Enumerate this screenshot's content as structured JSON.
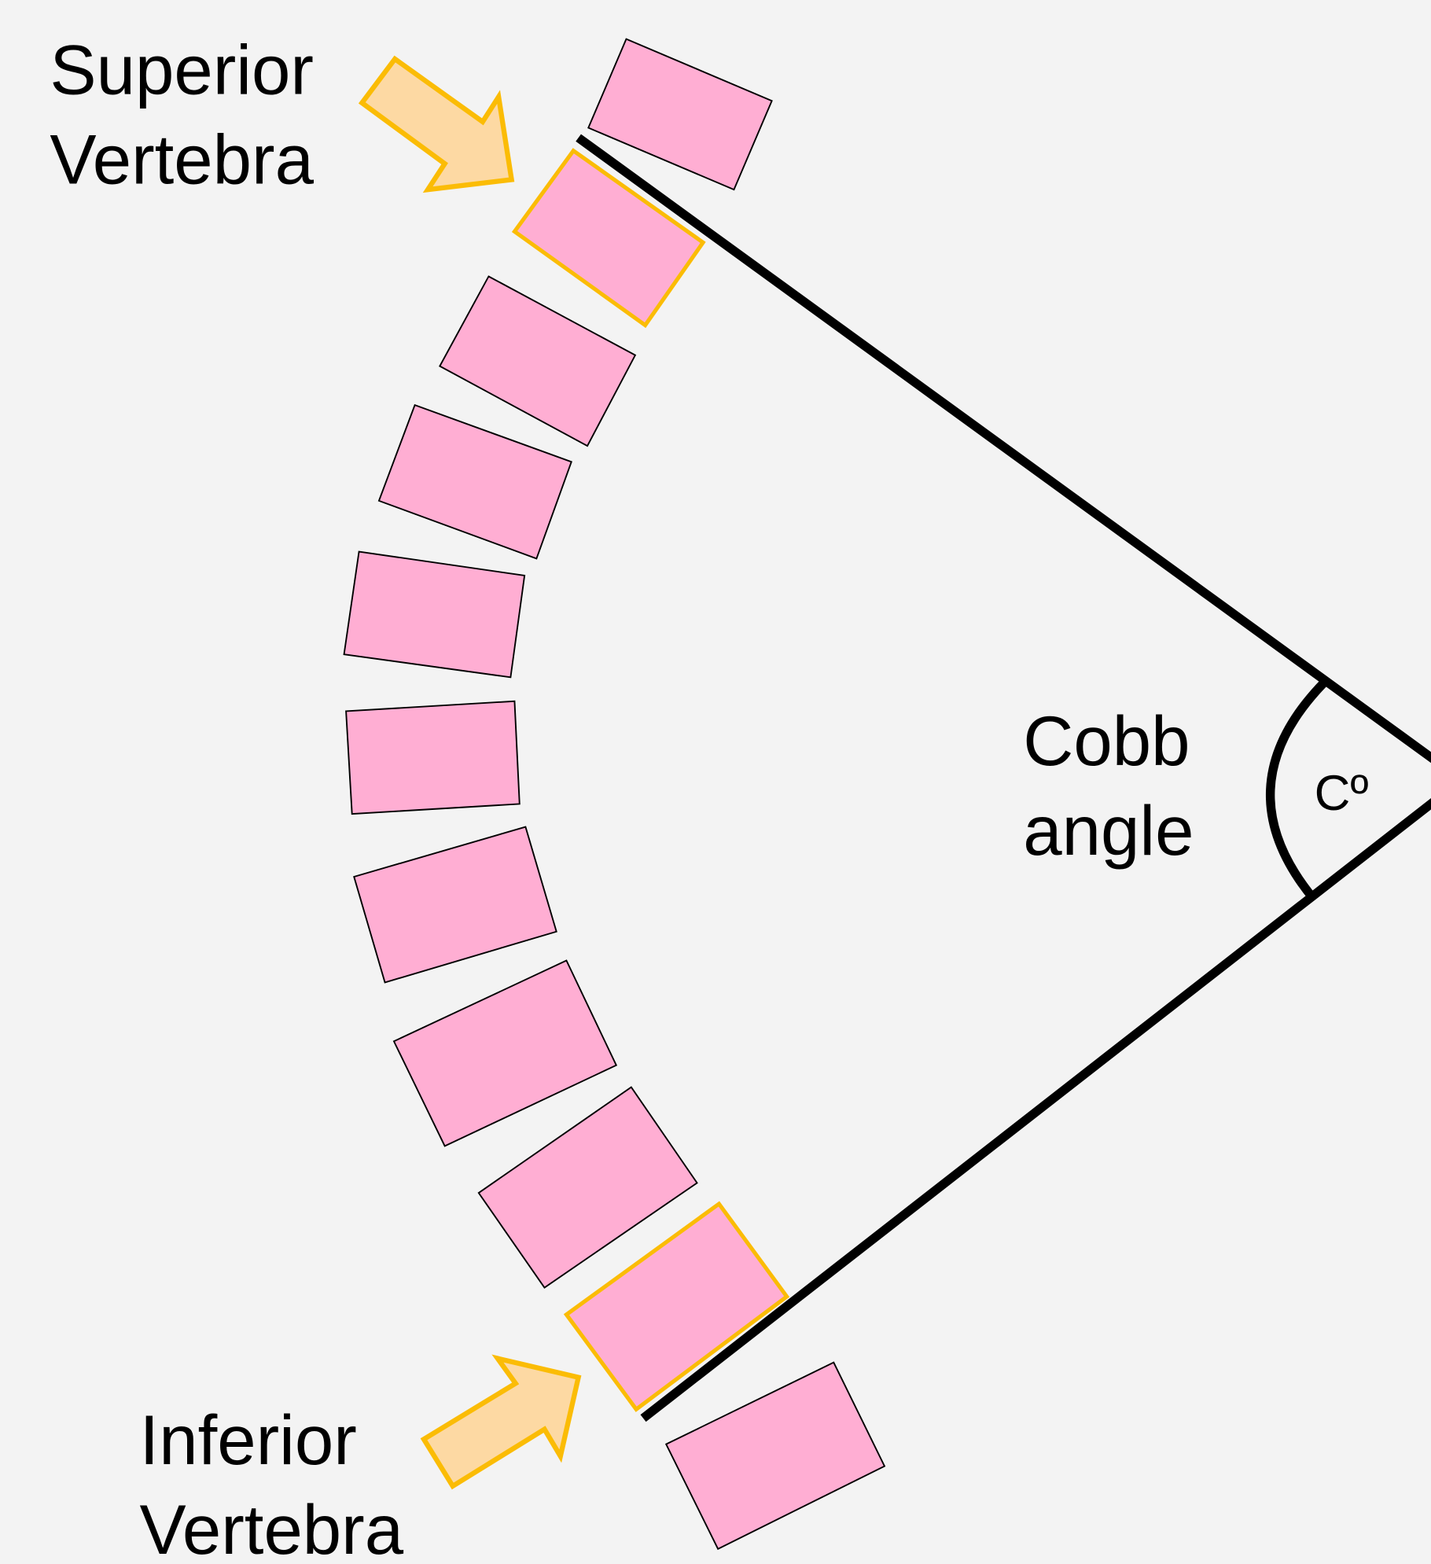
{
  "superior_label": {
    "line1": "Superior",
    "line2": "Vertebra"
  },
  "inferior_label": {
    "line1": "Inferior",
    "line2": "Vertebra"
  },
  "angle_label": {
    "line1": "Cobb",
    "line2": "angle"
  },
  "angle_symbol": "Cº"
}
